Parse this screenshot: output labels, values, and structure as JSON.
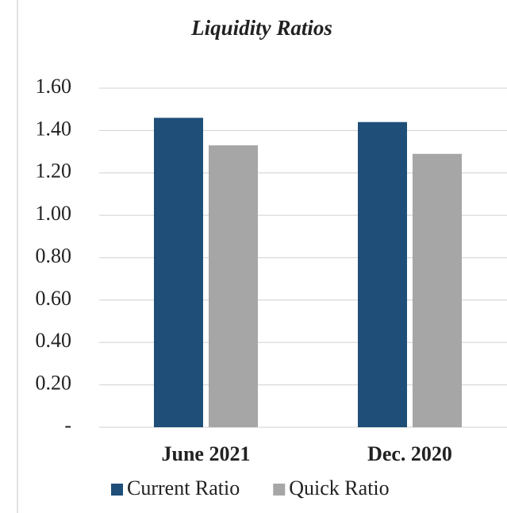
{
  "chart_data": {
    "type": "bar",
    "title": "Liquidity Ratios",
    "categories": [
      "June 2021",
      "Dec. 2020"
    ],
    "series": [
      {
        "name": "Current Ratio",
        "color": "#1f4e79",
        "values": [
          1.46,
          1.44
        ]
      },
      {
        "name": "Quick Ratio",
        "color": "#a6a6a6",
        "values": [
          1.33,
          1.29
        ]
      }
    ],
    "ylim": [
      0,
      1.6
    ],
    "yticks": [
      {
        "value": 0,
        "label": "-"
      },
      {
        "value": 0.2,
        "label": "0.20"
      },
      {
        "value": 0.4,
        "label": "0.40"
      },
      {
        "value": 0.6,
        "label": "0.60"
      },
      {
        "value": 0.8,
        "label": "0.80"
      },
      {
        "value": 1.0,
        "label": "1.00"
      },
      {
        "value": 1.2,
        "label": "1.20"
      },
      {
        "value": 1.4,
        "label": "1.40"
      },
      {
        "value": 1.6,
        "label": "1.60"
      }
    ],
    "grid": true,
    "legend": "bottom"
  }
}
